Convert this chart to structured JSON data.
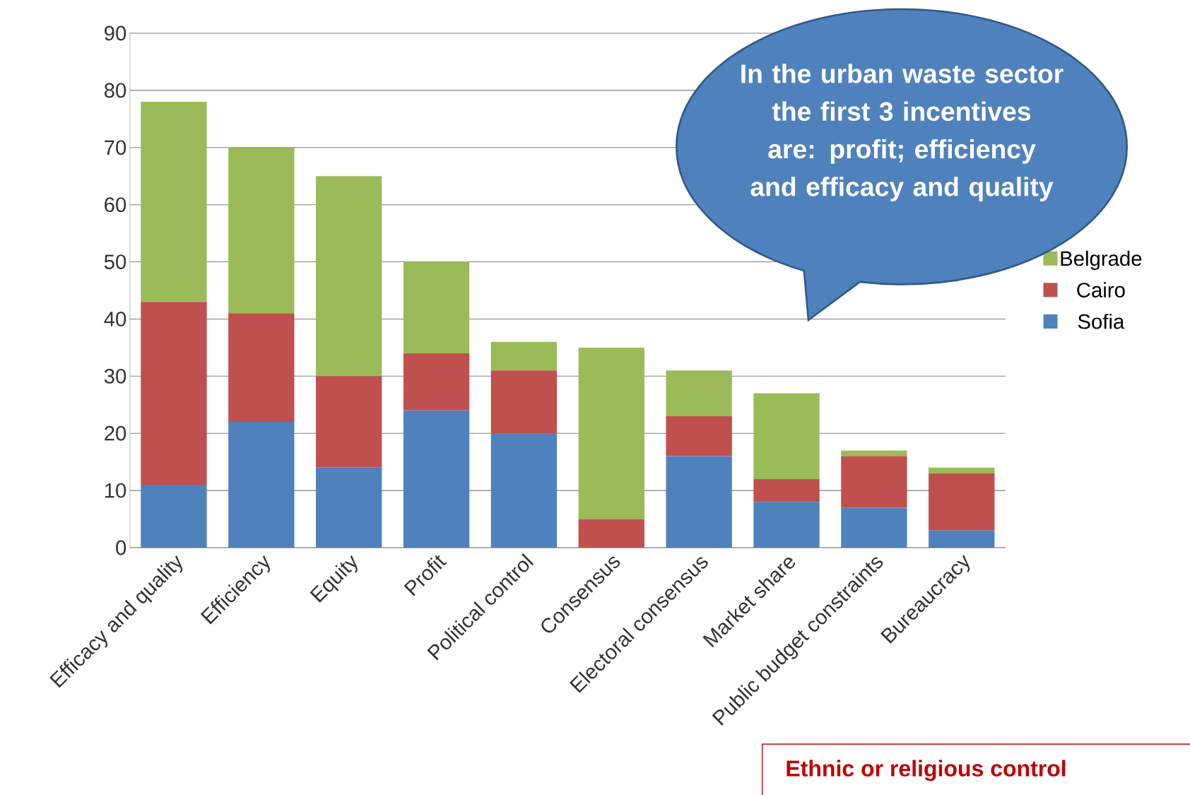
{
  "chart_data": {
    "type": "bar",
    "stacked": true,
    "categories": [
      "Efficacy and quality",
      "Efficiency",
      "Equity",
      "Profit",
      "Political control",
      "Consensus",
      "Electoral consensus",
      "Market share",
      "Public budget constraints",
      "Bureaucracy"
    ],
    "series": [
      {
        "name": "Sofia",
        "color": "#4f81bd",
        "values": [
          11,
          22,
          14,
          24,
          20,
          0,
          16,
          8,
          7,
          3
        ]
      },
      {
        "name": "Cairo",
        "color": "#c0504d",
        "values": [
          32,
          19,
          16,
          10,
          11,
          5,
          7,
          4,
          9,
          10
        ]
      },
      {
        "name": "Belgrade",
        "color": "#9bbb59",
        "values": [
          35,
          29,
          35,
          16,
          5,
          30,
          8,
          15,
          1,
          1
        ]
      }
    ],
    "ylim": [
      0,
      90
    ],
    "yticks": [
      0,
      10,
      20,
      30,
      40,
      50,
      60,
      70,
      80,
      90
    ],
    "grid": "y",
    "legend": "right",
    "annotations": [
      "In the urban waste sector the first 3 incentives are: profit; efficiency and efficacy and quality",
      "Ethnic or religious control"
    ]
  }
}
